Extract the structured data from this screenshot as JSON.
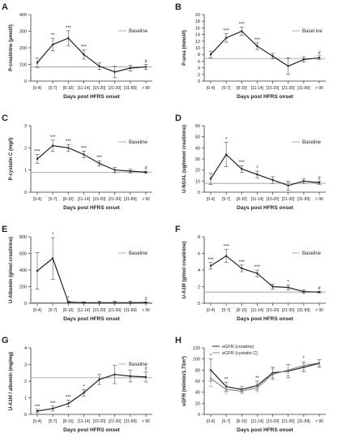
{
  "chart_data": [
    {
      "panel": "A",
      "type": "line",
      "categories": [
        "[0-4]",
        "[5-7]",
        "[8-10]",
        "[11-14]",
        "[15-20]",
        "[21-30]",
        "[31-89]",
        "> 90"
      ],
      "values": [
        110,
        220,
        258,
        160,
        90,
        55,
        78,
        85
      ],
      "err": [
        28,
        38,
        45,
        28,
        20,
        35,
        18,
        15
      ],
      "sig": [
        "",
        "**",
        "***",
        "***",
        "",
        "",
        "",
        "#"
      ],
      "baseline": 85,
      "baseline_label": "Baseline",
      "ylim": [
        0,
        400
      ],
      "yticks": [
        0,
        100,
        200,
        300,
        400
      ],
      "xlabel": "Days post HFRS onset",
      "ylabel": "P-creatinine (μmol/l)"
    },
    {
      "panel": "B",
      "type": "line",
      "categories": [
        "[0-4]",
        "[5-7]",
        "[8-10]",
        "[11-14]",
        "[15-20]",
        "[21-30]",
        "[31-89]",
        "> 90"
      ],
      "values": [
        8,
        13,
        15,
        10.5,
        7.5,
        4.5,
        6.5,
        7
      ],
      "err": [
        1,
        1.3,
        1.2,
        1,
        0.8,
        2.5,
        0.8,
        0.6
      ],
      "sig": [
        "",
        "***",
        "***",
        "***",
        "",
        "",
        "",
        "#"
      ],
      "baseline": 6.8,
      "baseline_label": "Basel ine",
      "ylim": [
        0,
        20
      ],
      "yticks": [
        0,
        2,
        4,
        6,
        8,
        10,
        12,
        14,
        16,
        18,
        20
      ],
      "xlabel": "Days post HFRS onset",
      "ylabel": "P-urea (mmol/l)"
    },
    {
      "panel": "C",
      "type": "line",
      "categories": [
        "[0-4]",
        "[5-7]",
        "[8-10]",
        "[11-14]",
        "[15-20]",
        "[21-30]",
        "[31-89]",
        "> 90"
      ],
      "values": [
        1.5,
        2.1,
        2.0,
        1.7,
        1.3,
        1.0,
        0.95,
        0.9
      ],
      "err": [
        0.2,
        0.25,
        0.15,
        0.15,
        0.12,
        0.12,
        0.08,
        0.05
      ],
      "sig": [
        "***",
        "***",
        "***",
        "***",
        "***",
        "",
        "",
        "#"
      ],
      "baseline": 0.9,
      "baseline_label": "Baseline",
      "ylim": [
        0,
        3
      ],
      "yticks": [
        0,
        1,
        2,
        3
      ],
      "xlabel": "Days post HFRS onset",
      "ylabel": "P-cystatin C (mg/l)"
    },
    {
      "panel": "D",
      "type": "line",
      "categories": [
        "[0-4]",
        "[5-7]",
        "[8-10]",
        "[11-14]",
        "[15-20]",
        "[21-30]",
        "[31-89]",
        "> 90"
      ],
      "values": [
        12,
        34,
        21,
        16,
        11,
        6,
        10,
        8.5
      ],
      "err": [
        5,
        11,
        3,
        3,
        3,
        4,
        2,
        1.5
      ],
      "sig": [
        "",
        "*",
        "***",
        "*",
        "",
        "",
        "",
        "#"
      ],
      "baseline": 8,
      "baseline_label": "Baseline",
      "ylim": [
        0,
        60
      ],
      "yticks": [
        0,
        10,
        20,
        30,
        40,
        50,
        60
      ],
      "xlabel": "Days post HFRS onset",
      "ylabel": "U-NGAL (ug/mmol creatinine)"
    },
    {
      "panel": "E",
      "type": "line",
      "categories": [
        "[0-4]",
        "[5-7]",
        "[8-10]",
        "[11-14]",
        "[15-20]",
        "[21-30]",
        "[31-89]",
        "> 90"
      ],
      "values": [
        390,
        540,
        15,
        8,
        6,
        6,
        6,
        10
      ],
      "err": [
        220,
        250,
        10,
        8,
        20,
        20,
        20,
        5
      ],
      "sig": [
        "",
        "*",
        "*",
        "",
        "",
        "",
        "",
        "#"
      ],
      "baseline": 8,
      "baseline_label": "Baseline",
      "ylim": [
        0,
        800
      ],
      "yticks": [
        0,
        200,
        400,
        600,
        800
      ],
      "xlabel": "Days post HFRS onset",
      "ylabel": "U-Albumin (g/mol creatinine)"
    },
    {
      "panel": "F",
      "type": "line",
      "categories": [
        "[0-4]",
        "[5-7]",
        "[8-10]",
        "[11-14]",
        "[15-20]",
        "[21-30]",
        "[31-89]",
        "> 90"
      ],
      "values": [
        4.5,
        5.7,
        4.2,
        3.6,
        2.0,
        1.9,
        1.4,
        1.35
      ],
      "err": [
        0.4,
        0.8,
        0.4,
        0.4,
        0.3,
        0.3,
        0.2,
        0.1
      ],
      "sig": [
        "***",
        "***",
        "***",
        "***",
        "",
        "*",
        "",
        "#"
      ],
      "baseline": 1.35,
      "baseline_label": "Baseline",
      "ylim": [
        0,
        8
      ],
      "yticks": [
        0,
        2,
        4,
        6,
        8
      ],
      "xlabel": "Days post HFRS onset",
      "ylabel": "U-A1M (g/mol creatinine)"
    },
    {
      "panel": "G",
      "type": "line",
      "categories": [
        "[0-4]",
        "[5-7]",
        "[8-10]",
        "[11-14]",
        "[15-20]",
        "[21-30]",
        "[31-89]",
        "> 90"
      ],
      "values": [
        0.2,
        0.35,
        0.65,
        1.3,
        2.1,
        2.4,
        2.3,
        2.25
      ],
      "err": [
        0.1,
        0.15,
        0.2,
        0.2,
        0.3,
        0.55,
        0.35,
        0.3
      ],
      "sig": [
        "***",
        "***",
        "***",
        "*",
        "",
        "",
        "",
        "#"
      ],
      "baseline": 2.2,
      "baseline_label": "Baseline",
      "ylim": [
        0,
        4
      ],
      "yticks": [
        0,
        1,
        2,
        3,
        4
      ],
      "xlabel": "Days post HFRS onset",
      "ylabel": "U-A1M / albumin (mg/mg)"
    },
    {
      "panel": "H",
      "type": "line",
      "categories": [
        "[0-4]",
        "[5-7]",
        "[8-10]",
        "[11-14]",
        "[15-20]",
        "[21-30]",
        "[31-89]",
        "> 90"
      ],
      "series": [
        {
          "name": "eGFR (creatine)",
          "values": [
            80,
            50,
            45,
            52,
            75,
            78,
            85,
            92
          ],
          "err": [
            20,
            8,
            5,
            8,
            10,
            12,
            8,
            7
          ],
          "color": "#222222"
        },
        {
          "name": "eGFR (cystatin C)",
          "values": [
            65,
            45,
            42,
            48,
            72,
            80,
            88,
            93
          ],
          "err": [
            15,
            7,
            5,
            7,
            10,
            10,
            8,
            6
          ],
          "color": "#888888"
        }
      ],
      "sig": [
        "*",
        "**",
        "",
        "**",
        "",
        "",
        "*",
        ""
      ],
      "ylim": [
        0,
        120
      ],
      "yticks": [
        0,
        20,
        40,
        60,
        80,
        100,
        120
      ],
      "xlabel": "Days post HFRS onset",
      "ylabel": "eGFR (ml/min/1.73m²)"
    }
  ]
}
